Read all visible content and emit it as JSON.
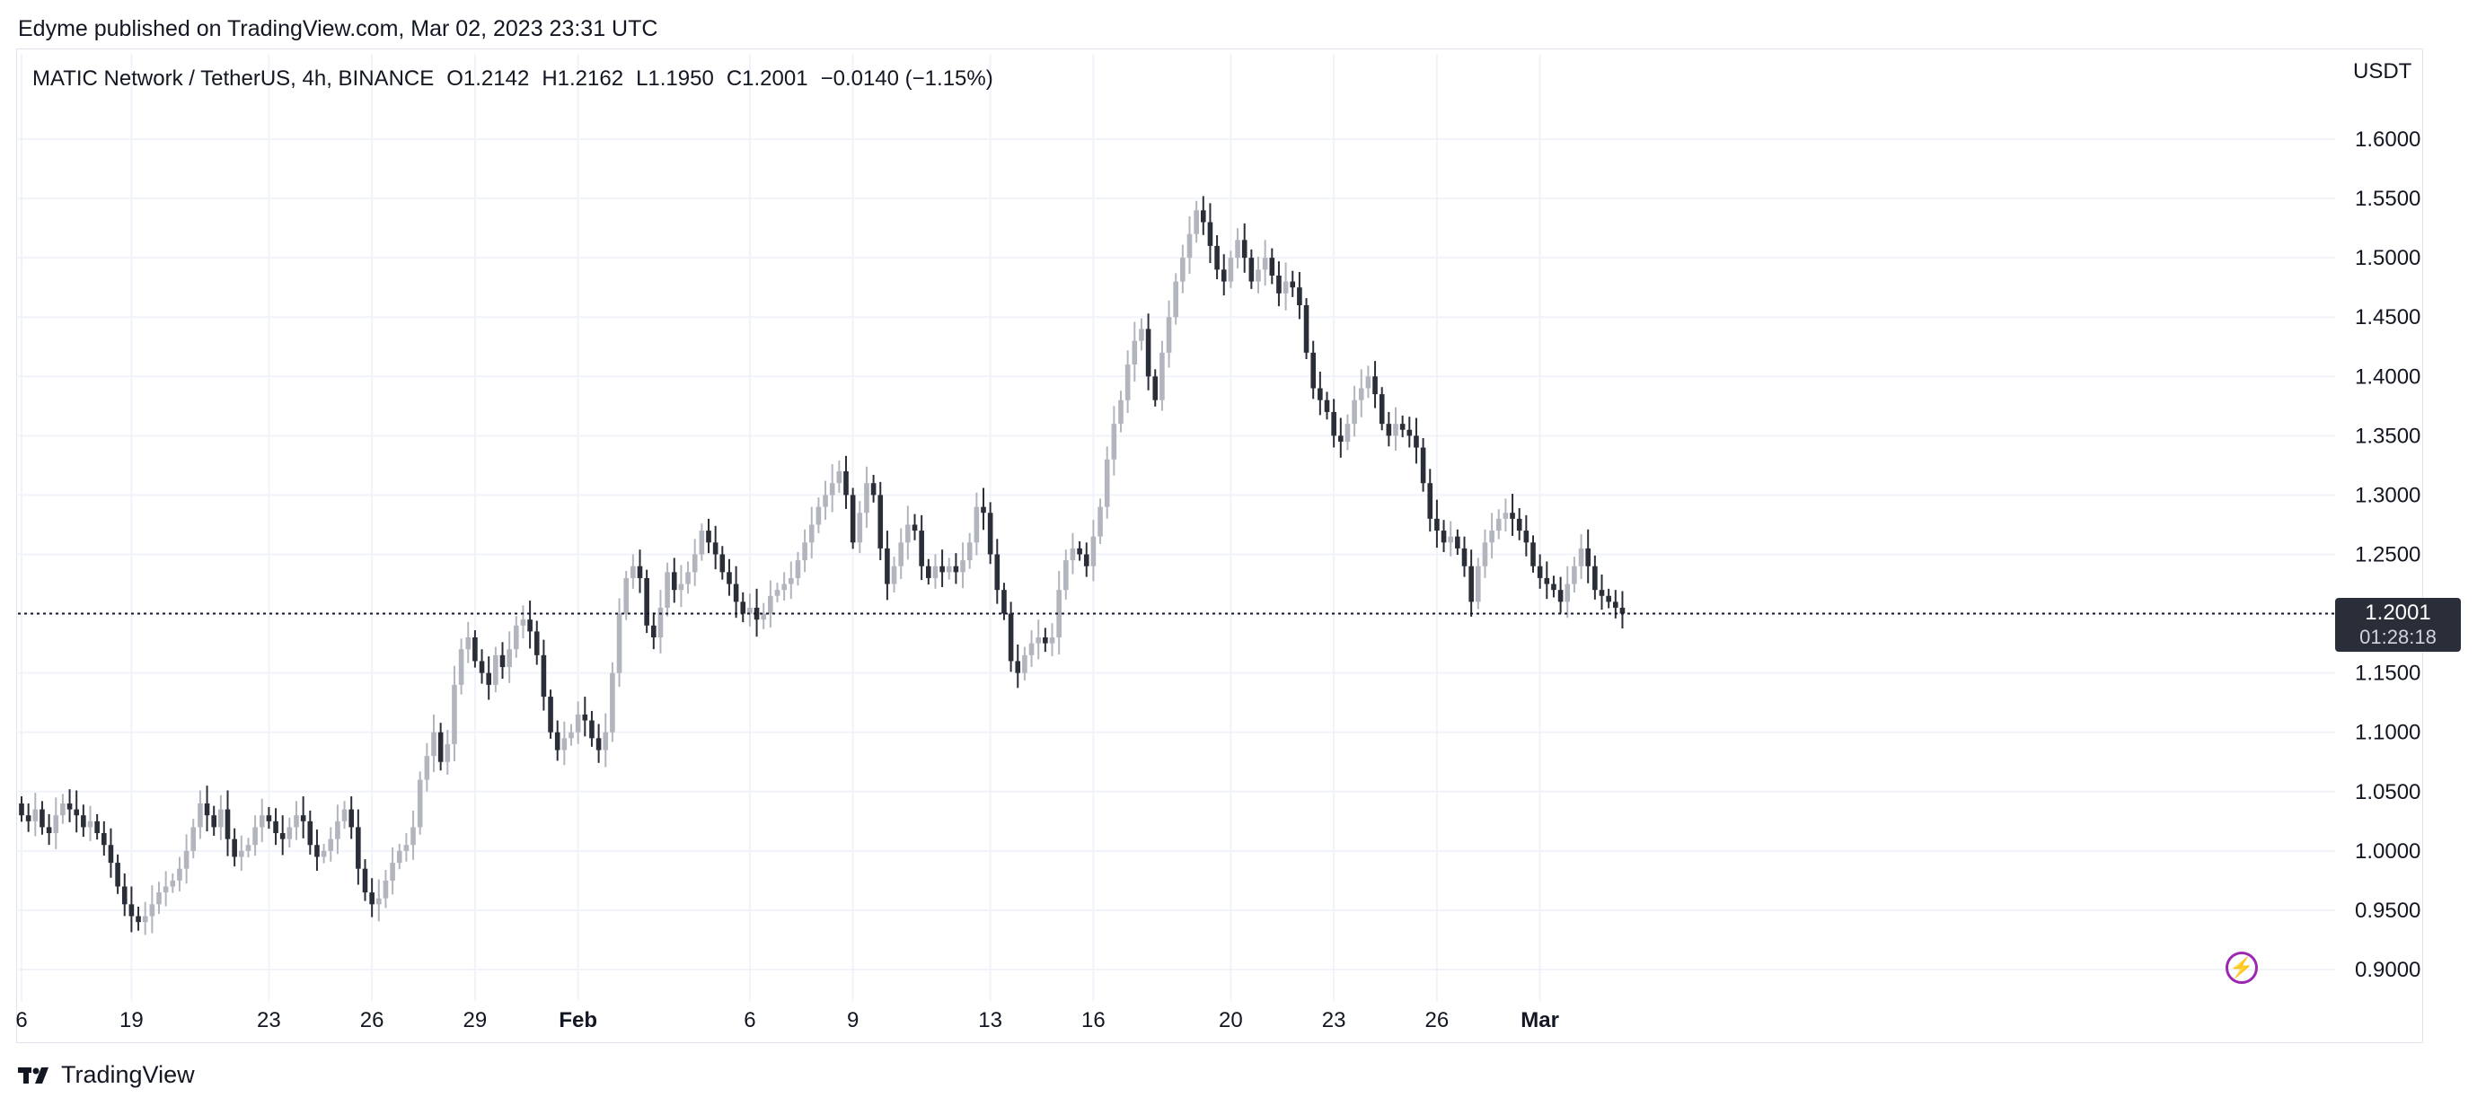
{
  "publication": "Edyme published on TradingView.com, Mar 02, 2023 23:31 UTC",
  "legend": {
    "symbol": "MATIC Network / TetherUS, 4h, BINANCE",
    "open": "O1.2142",
    "high": "H1.2162",
    "low": "L1.1950",
    "close": "C1.2001",
    "change": "−0.0140 (−1.15%)"
  },
  "currency": "USDT",
  "last_price": {
    "price": "1.2001",
    "countdown": "01:28:18"
  },
  "footer_brand": "TradingView",
  "icons": {
    "brand_logo": "tradingview-logo-icon",
    "replay": "lightning-icon"
  },
  "colors": {
    "up": "#b2b5be",
    "down": "#2a2e39",
    "grid": "#f0f3fa",
    "badge": "#2a2e39",
    "accent": "#9c27b0"
  },
  "chart_data": {
    "type": "candlestick",
    "title": "MATIC Network / TetherUS, 4h, BINANCE",
    "xlabel": "",
    "ylabel": "USDT",
    "ylim": [
      0.88,
      1.65
    ],
    "grid": true,
    "y_ticks": [
      "1.6000",
      "1.5500",
      "1.5000",
      "1.4500",
      "1.4000",
      "1.3500",
      "1.3000",
      "1.2500",
      "1.2000",
      "1.1500",
      "1.1000",
      "1.0500",
      "1.0000",
      "0.9500",
      "0.9000"
    ],
    "x_ticks": [
      {
        "label": "6",
        "bar": 0
      },
      {
        "label": "19",
        "bar": 16
      },
      {
        "label": "23",
        "bar": 36
      },
      {
        "label": "26",
        "bar": 51
      },
      {
        "label": "29",
        "bar": 66
      },
      {
        "label": "Feb",
        "bar": 81
      },
      {
        "label": "6",
        "bar": 106
      },
      {
        "label": "9",
        "bar": 121
      },
      {
        "label": "13",
        "bar": 141
      },
      {
        "label": "16",
        "bar": 156
      },
      {
        "label": "20",
        "bar": 176
      },
      {
        "label": "23",
        "bar": 191
      },
      {
        "label": "26",
        "bar": 206
      },
      {
        "label": "Mar",
        "bar": 221
      }
    ],
    "last_close": 1.2001,
    "closes": [
      1.03,
      1.025,
      1.035,
      1.02,
      1.015,
      1.03,
      1.04,
      1.035,
      1.03,
      1.02,
      1.025,
      1.015,
      1.005,
      0.99,
      0.97,
      0.955,
      0.945,
      0.94,
      0.945,
      0.955,
      0.965,
      0.97,
      0.975,
      0.985,
      1.0,
      1.02,
      1.04,
      1.03,
      1.02,
      1.035,
      1.01,
      0.995,
      1.0,
      1.005,
      1.02,
      1.03,
      1.025,
      1.015,
      1.01,
      1.02,
      1.03,
      1.025,
      1.005,
      0.995,
      1.0,
      1.01,
      1.025,
      1.035,
      1.02,
      0.985,
      0.965,
      0.955,
      0.96,
      0.975,
      0.99,
      1.0,
      1.005,
      1.02,
      1.06,
      1.08,
      1.1,
      1.075,
      1.09,
      1.14,
      1.17,
      1.18,
      1.16,
      1.15,
      1.14,
      1.165,
      1.155,
      1.17,
      1.19,
      1.195,
      1.185,
      1.165,
      1.13,
      1.1,
      1.085,
      1.095,
      1.1,
      1.115,
      1.11,
      1.095,
      1.085,
      1.1,
      1.15,
      1.2,
      1.23,
      1.24,
      1.23,
      1.19,
      1.18,
      1.205,
      1.235,
      1.22,
      1.225,
      1.235,
      1.25,
      1.27,
      1.26,
      1.25,
      1.235,
      1.225,
      1.21,
      1.2,
      1.205,
      1.195,
      1.2,
      1.215,
      1.22,
      1.225,
      1.23,
      1.245,
      1.26,
      1.275,
      1.29,
      1.3,
      1.31,
      1.32,
      1.3,
      1.26,
      1.285,
      1.31,
      1.3,
      1.255,
      1.225,
      1.24,
      1.26,
      1.275,
      1.27,
      1.24,
      1.23,
      1.24,
      1.235,
      1.24,
      1.235,
      1.245,
      1.26,
      1.29,
      1.285,
      1.25,
      1.22,
      1.2,
      1.16,
      1.15,
      1.165,
      1.175,
      1.18,
      1.175,
      1.18,
      1.22,
      1.245,
      1.255,
      1.25,
      1.24,
      1.265,
      1.29,
      1.33,
      1.36,
      1.38,
      1.41,
      1.43,
      1.44,
      1.4,
      1.38,
      1.42,
      1.45,
      1.48,
      1.5,
      1.52,
      1.54,
      1.53,
      1.51,
      1.49,
      1.48,
      1.5,
      1.515,
      1.5,
      1.48,
      1.49,
      1.5,
      1.485,
      1.47,
      1.48,
      1.475,
      1.46,
      1.42,
      1.39,
      1.38,
      1.37,
      1.35,
      1.345,
      1.36,
      1.38,
      1.39,
      1.4,
      1.385,
      1.36,
      1.35,
      1.36,
      1.355,
      1.35,
      1.34,
      1.31,
      1.28,
      1.27,
      1.26,
      1.265,
      1.255,
      1.24,
      1.21,
      1.24,
      1.26,
      1.27,
      1.28,
      1.285,
      1.28,
      1.27,
      1.26,
      1.24,
      1.23,
      1.225,
      1.22,
      1.21,
      1.225,
      1.24,
      1.255,
      1.24,
      1.22,
      1.215,
      1.21,
      1.205,
      1.2001
    ]
  }
}
